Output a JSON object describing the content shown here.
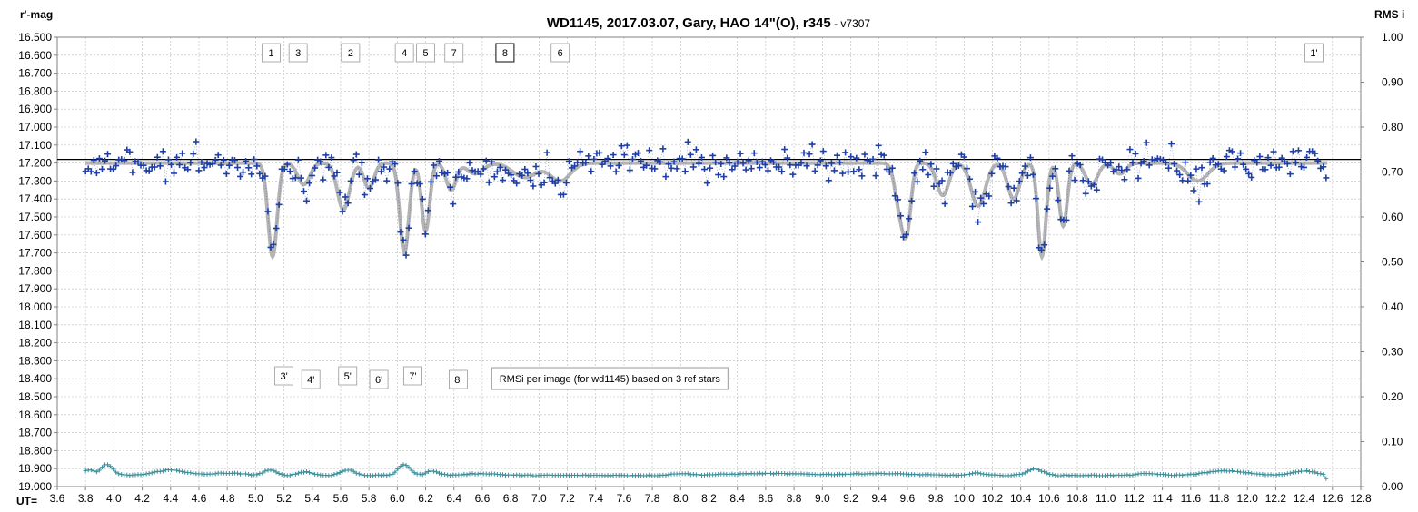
{
  "chart_data": {
    "type": "scatter",
    "title": "WD1145, 2017.03.07,  Gary, HAO 14\"(O), r345",
    "version": " - v7307",
    "ylabel_left": "r'-mag",
    "ylabel_right": "RMS i",
    "xlabel": "UT=",
    "xlim": [
      3.6,
      12.8
    ],
    "ylim_left": [
      16.5,
      19.0
    ],
    "ylim_right": [
      0.0,
      1.0
    ],
    "left_inverted": true,
    "grid": true,
    "x_ticks": [
      "3.6",
      "3.8",
      "4.0",
      "4.2",
      "4.4",
      "4.6",
      "4.8",
      "5.0",
      "5.2",
      "5.4",
      "5.6",
      "5.8",
      "6.0",
      "6.2",
      "6.4",
      "6.6",
      "6.8",
      "7.0",
      "7.2",
      "7.4",
      "7.6",
      "7.8",
      "8.0",
      "8.2",
      "8.4",
      "8.6",
      "8.8",
      "9.0",
      "9.2",
      "9.4",
      "9.6",
      "9.8",
      "10.0",
      "10.2",
      "10.4",
      "10.6",
      "10.8",
      "11.0",
      "11.2",
      "11.4",
      "11.6",
      "11.8",
      "12.0",
      "12.2",
      "12.4",
      "12.6",
      "12.8"
    ],
    "y_ticks_left": [
      "16.500",
      "16.600",
      "16.700",
      "16.800",
      "16.900",
      "17.000",
      "17.100",
      "17.200",
      "17.300",
      "17.400",
      "17.500",
      "17.600",
      "17.700",
      "17.800",
      "17.900",
      "18.000",
      "18.100",
      "18.200",
      "18.300",
      "18.400",
      "18.500",
      "18.600",
      "18.700",
      "18.800",
      "18.900",
      "19.000"
    ],
    "y_ticks_right": [
      "1.00",
      "0.90",
      "0.80",
      "0.70",
      "0.60",
      "0.50",
      "0.40",
      "0.30",
      "0.20",
      "0.10",
      "0.00"
    ],
    "reference_line_mag": 17.18,
    "model_curve": {
      "baseline": 17.2,
      "dips": [
        {
          "ut": 5.12,
          "depth": 0.52,
          "width": 0.045
        },
        {
          "ut": 5.34,
          "depth": 0.12,
          "width": 0.06
        },
        {
          "ut": 5.62,
          "depth": 0.26,
          "width": 0.06
        },
        {
          "ut": 5.8,
          "depth": 0.14,
          "width": 0.05
        },
        {
          "ut": 6.05,
          "depth": 0.5,
          "width": 0.045
        },
        {
          "ut": 6.2,
          "depth": 0.38,
          "width": 0.04
        },
        {
          "ut": 6.38,
          "depth": 0.15,
          "width": 0.05
        },
        {
          "ut": 6.55,
          "depth": 0.06,
          "width": 0.08
        },
        {
          "ut": 6.9,
          "depth": 0.08,
          "width": 0.12
        },
        {
          "ut": 7.15,
          "depth": 0.1,
          "width": 0.1
        },
        {
          "ut": 9.55,
          "depth": 0.26,
          "width": 0.05
        },
        {
          "ut": 9.6,
          "depth": 0.3,
          "width": 0.04
        },
        {
          "ut": 9.85,
          "depth": 0.18,
          "width": 0.06
        },
        {
          "ut": 10.1,
          "depth": 0.24,
          "width": 0.07
        },
        {
          "ut": 10.35,
          "depth": 0.2,
          "width": 0.06
        },
        {
          "ut": 10.55,
          "depth": 0.52,
          "width": 0.04
        },
        {
          "ut": 10.7,
          "depth": 0.35,
          "width": 0.04
        },
        {
          "ut": 10.9,
          "depth": 0.12,
          "width": 0.06
        },
        {
          "ut": 11.1,
          "depth": 0.06,
          "width": 0.06
        },
        {
          "ut": 11.65,
          "depth": 0.1,
          "width": 0.1
        }
      ]
    },
    "data_scatter": 0.045,
    "data_ut_range": [
      3.8,
      12.57
    ],
    "data_step": 0.0195,
    "rms_series": {
      "ut_range": [
        3.8,
        12.57
      ],
      "step": 0.0195,
      "baseline": 0.025,
      "bumps": [
        {
          "ut": 3.82,
          "amp": 0.012,
          "width": 0.05
        },
        {
          "ut": 3.95,
          "amp": 0.024,
          "width": 0.06
        },
        {
          "ut": 4.4,
          "amp": 0.012,
          "width": 0.15
        },
        {
          "ut": 4.8,
          "amp": 0.005,
          "width": 0.15
        },
        {
          "ut": 5.1,
          "amp": 0.012,
          "width": 0.06
        },
        {
          "ut": 5.35,
          "amp": 0.008,
          "width": 0.07
        },
        {
          "ut": 5.65,
          "amp": 0.012,
          "width": 0.07
        },
        {
          "ut": 6.05,
          "amp": 0.024,
          "width": 0.06
        },
        {
          "ut": 6.25,
          "amp": 0.01,
          "width": 0.06
        },
        {
          "ut": 6.6,
          "amp": 0.004,
          "width": 0.15
        },
        {
          "ut": 8.0,
          "amp": 0.004,
          "width": 0.08
        },
        {
          "ut": 8.6,
          "amp": 0.004,
          "width": 0.4
        },
        {
          "ut": 9.4,
          "amp": 0.004,
          "width": 0.3
        },
        {
          "ut": 10.1,
          "amp": 0.005,
          "width": 0.07
        },
        {
          "ut": 10.5,
          "amp": 0.014,
          "width": 0.08
        },
        {
          "ut": 11.3,
          "amp": 0.004,
          "width": 0.1
        },
        {
          "ut": 11.85,
          "amp": 0.01,
          "width": 0.2
        },
        {
          "ut": 12.4,
          "amp": 0.01,
          "width": 0.12
        },
        {
          "ut": 12.57,
          "amp": -0.015,
          "width": 0.02
        }
      ]
    },
    "upper_markers": [
      {
        "label": "1",
        "ut": 5.11
      },
      {
        "label": "3",
        "ut": 5.3
      },
      {
        "label": "2",
        "ut": 5.67
      },
      {
        "label": "4",
        "ut": 6.05
      },
      {
        "label": "5",
        "ut": 6.2
      },
      {
        "label": "7",
        "ut": 6.4
      },
      {
        "label": "8",
        "ut": 6.76
      },
      {
        "label": "6",
        "ut": 7.15
      },
      {
        "label": "1'",
        "ut": 12.47
      }
    ],
    "lower_markers": [
      {
        "label": "3'",
        "ut": 5.2
      },
      {
        "label": "4'",
        "ut": 5.39
      },
      {
        "label": "5'",
        "ut": 5.65
      },
      {
        "label": "6'",
        "ut": 5.87
      },
      {
        "label": "7'",
        "ut": 6.11
      },
      {
        "label": "8'",
        "ut": 6.43
      }
    ],
    "rms_note": "RMSi per image (for wd1145) based on 3 ref stars",
    "rms_note_ut": 7.5,
    "colors": {
      "points": "#1f3fa6",
      "model": "#b4b4b4",
      "rms": "#3a8f9c",
      "ref_line": "#000000",
      "grid": "#bdbdbd"
    }
  }
}
